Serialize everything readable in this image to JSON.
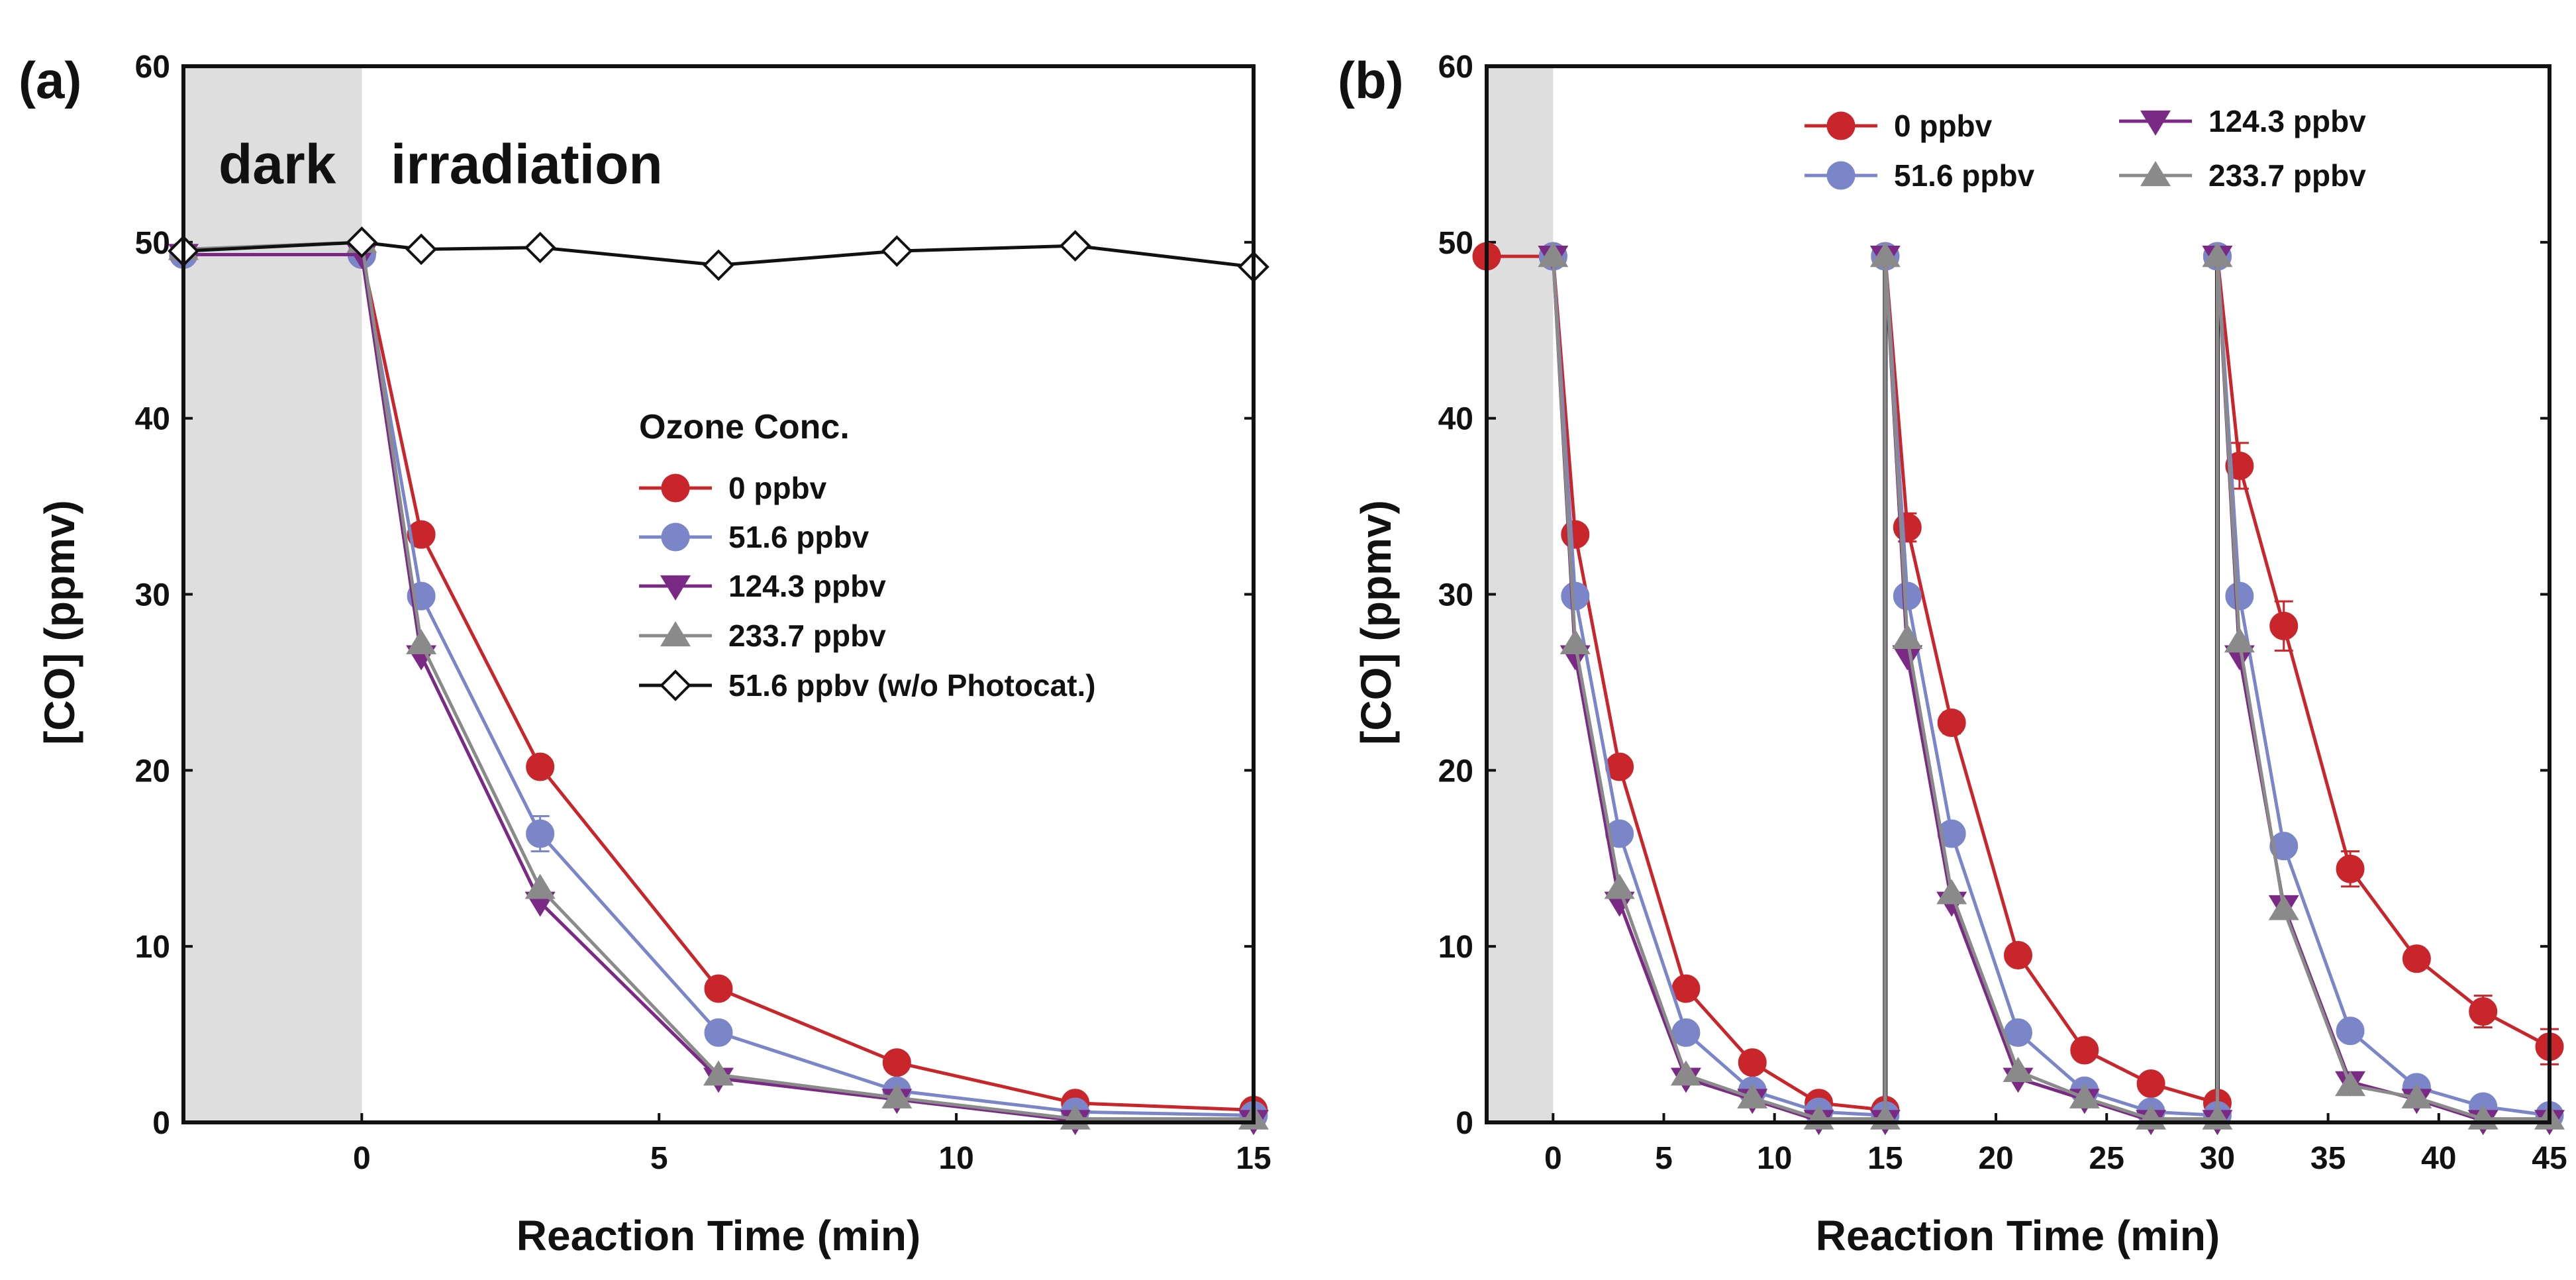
{
  "colors": {
    "red": "#c8262a",
    "blue": "#7a86c8",
    "purple": "#7a2a85",
    "gray": "#8a8a8a",
    "black": "#111111",
    "shade": "#dedede"
  },
  "chart_data": [
    {
      "type": "line",
      "panel_label": "(a)",
      "xlabel": "Reaction Time (min)",
      "ylabel": "[CO] (ppmv)",
      "xlim": [
        -3,
        15
      ],
      "ylim": [
        0,
        60
      ],
      "xticks": [
        0,
        5,
        10,
        15
      ],
      "yticks": [
        0,
        10,
        20,
        30,
        40,
        50,
        60
      ],
      "dark_region": [
        -3,
        0
      ],
      "region_labels": {
        "dark": "dark",
        "light": "irradiation"
      },
      "legend_title": "Ozone Conc.",
      "legend_position": "center-right",
      "series": [
        {
          "name": "0 ppbv",
          "color": "red",
          "marker": "circle",
          "x": [
            -3,
            0,
            1,
            3,
            6,
            9,
            12,
            15
          ],
          "y": [
            49.3,
            49.3,
            33.4,
            20.2,
            7.6,
            3.4,
            1.1,
            0.7
          ],
          "err": [
            0,
            0,
            0.4,
            0.4,
            0.4,
            0.3,
            0.3,
            0.2
          ]
        },
        {
          "name": "51.6 ppbv",
          "color": "blue",
          "marker": "circle",
          "x": [
            -3,
            0,
            1,
            3,
            6,
            9,
            12,
            15
          ],
          "y": [
            49.3,
            49.3,
            29.9,
            16.4,
            5.1,
            1.8,
            0.6,
            0.4
          ],
          "err": [
            0,
            0,
            0.4,
            1.0,
            0.5,
            0.4,
            0.3,
            0.2
          ]
        },
        {
          "name": "124.3 ppbv",
          "color": "purple",
          "marker": "triangle-down",
          "x": [
            -3,
            0,
            1,
            3,
            6,
            9,
            12,
            15
          ],
          "y": [
            49.3,
            49.3,
            26.5,
            12.5,
            2.5,
            1.3,
            0.1,
            0.1
          ],
          "err": [
            0,
            0,
            0,
            0,
            0,
            0,
            0,
            0
          ]
        },
        {
          "name": "233.7 ppbv",
          "color": "gray",
          "marker": "triangle-up",
          "x": [
            -3,
            0,
            1,
            3,
            6,
            9,
            12,
            15
          ],
          "y": [
            49.6,
            50.0,
            27.2,
            13.3,
            2.7,
            1.4,
            0.2,
            0.2
          ],
          "err": [
            0,
            0,
            0,
            0,
            0,
            0,
            0,
            0
          ]
        },
        {
          "name": "51.6 ppbv  (w/o Photocat.)",
          "color": "black",
          "marker": "diamond-open",
          "x": [
            -3,
            0,
            1,
            3,
            6,
            9,
            12,
            15
          ],
          "y": [
            49.5,
            50.0,
            49.6,
            49.7,
            48.7,
            49.5,
            49.8,
            48.6
          ],
          "err": [
            0,
            0,
            0,
            0,
            0,
            0,
            0,
            0
          ]
        }
      ]
    },
    {
      "type": "line",
      "panel_label": "(b)",
      "xlabel": "Reaction Time (min)",
      "ylabel": "[CO] (ppmv)",
      "xlim": [
        -3,
        45
      ],
      "ylim": [
        0,
        60
      ],
      "xticks": [
        0,
        5,
        10,
        15,
        20,
        25,
        30,
        35,
        40,
        45
      ],
      "yticks": [
        0,
        10,
        20,
        30,
        40,
        50,
        60
      ],
      "dark_region": [
        -3,
        0
      ],
      "cycle_lines": [
        15,
        30
      ],
      "legend_position": "top-right",
      "series": [
        {
          "name": "0 ppbv",
          "color": "red",
          "marker": "circle",
          "x": [
            -3,
            0,
            1,
            3,
            6,
            9,
            12,
            15,
            15,
            16,
            18,
            21,
            24,
            27,
            30,
            30,
            31,
            33,
            36,
            39,
            42,
            45
          ],
          "y": [
            49.2,
            49.2,
            33.4,
            20.2,
            7.6,
            3.4,
            1.1,
            0.7,
            49.2,
            33.8,
            22.7,
            9.5,
            4.1,
            2.2,
            1.1,
            49.2,
            37.3,
            28.2,
            14.4,
            9.3,
            6.3,
            4.3
          ],
          "err": [
            0,
            0,
            0,
            0,
            0,
            0,
            0,
            0,
            0,
            0.8,
            0.6,
            0.4,
            0.3,
            0.3,
            0.3,
            0,
            1.3,
            1.4,
            1.0,
            0.5,
            0.9,
            1.0
          ]
        },
        {
          "name": "51.6 ppbv",
          "color": "blue",
          "marker": "circle",
          "x": [
            0,
            1,
            3,
            6,
            9,
            12,
            15,
            15,
            16,
            18,
            21,
            24,
            27,
            30,
            30,
            31,
            33,
            36,
            39,
            42,
            45
          ],
          "y": [
            49.2,
            29.9,
            16.4,
            5.1,
            1.8,
            0.6,
            0.4,
            49.2,
            29.9,
            16.4,
            5.1,
            1.8,
            0.6,
            0.4,
            49.2,
            29.9,
            15.7,
            5.2,
            2.0,
            0.9,
            0.4
          ],
          "err": [
            0,
            0.4,
            0.4,
            0.3,
            0.3,
            0.2,
            0.2,
            0,
            0.4,
            0.4,
            0.3,
            0.3,
            0.2,
            0.2,
            0,
            0.5,
            0.5,
            0.3,
            0.3,
            0.2,
            0.2
          ]
        },
        {
          "name": "124.3 ppbv",
          "color": "purple",
          "marker": "triangle-down",
          "x": [
            0,
            1,
            3,
            6,
            9,
            12,
            15,
            15,
            16,
            18,
            21,
            24,
            27,
            30,
            30,
            31,
            33,
            36,
            39,
            42,
            45
          ],
          "y": [
            49.2,
            26.5,
            12.5,
            2.5,
            1.3,
            0.1,
            0.1,
            49.2,
            26.5,
            12.5,
            2.5,
            1.3,
            0.1,
            0.1,
            49.2,
            26.5,
            12.3,
            2.3,
            1.3,
            0.1,
            0.1
          ],
          "err": [
            0,
            0,
            0,
            0,
            0,
            0,
            0,
            0,
            0,
            0,
            0,
            0,
            0,
            0,
            0,
            0,
            0,
            0,
            0,
            0,
            0
          ]
        },
        {
          "name": "233.7 ppbv",
          "color": "gray",
          "marker": "triangle-up",
          "x": [
            0,
            1,
            3,
            6,
            9,
            12,
            15,
            15,
            16,
            18,
            21,
            24,
            27,
            30,
            30,
            31,
            33,
            36,
            39,
            42,
            45
          ],
          "y": [
            49.2,
            27.2,
            13.3,
            2.7,
            1.4,
            0.2,
            0.2,
            49.2,
            27.5,
            13.0,
            2.9,
            1.4,
            0.2,
            0.2,
            49.2,
            27.3,
            12.1,
            2.1,
            1.4,
            0.2,
            0.2
          ],
          "err": [
            0,
            0,
            0,
            0,
            0,
            0,
            0,
            0,
            0,
            0,
            0,
            0,
            0,
            0,
            0,
            0,
            0,
            0,
            0,
            0,
            0
          ]
        }
      ]
    }
  ]
}
